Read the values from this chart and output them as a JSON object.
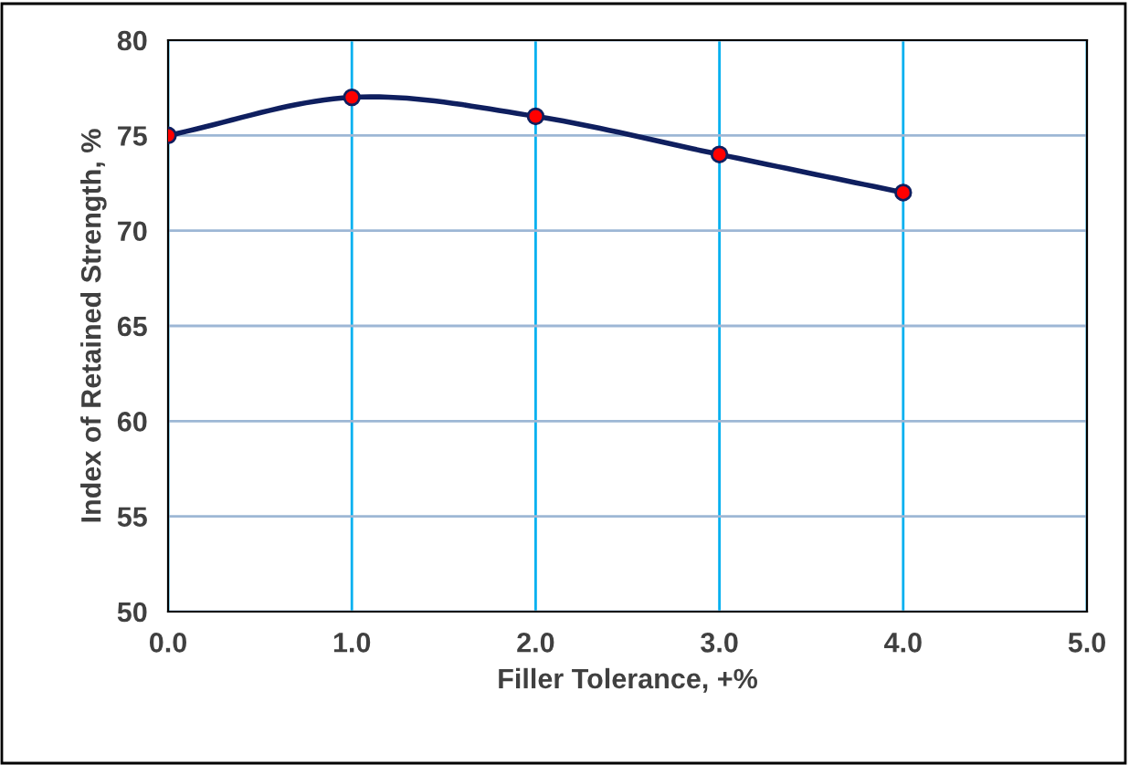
{
  "chart_data": {
    "type": "line",
    "xlabel": "Filler Tolerance, +%",
    "ylabel": "Index of Retained Strength, %",
    "x": [
      0,
      1,
      2,
      3,
      4
    ],
    "series": [
      {
        "color": "#0f1f5f",
        "values": [
          75,
          77,
          76,
          74,
          72
        ]
      }
    ],
    "xlim": [
      0,
      5
    ],
    "xticks": [
      {
        "value": 0,
        "label": "0.0"
      },
      {
        "value": 1,
        "label": "1.0"
      },
      {
        "value": 2,
        "label": "2.0"
      },
      {
        "value": 3,
        "label": "3.0"
      },
      {
        "value": 4,
        "label": "4.0"
      },
      {
        "value": 5,
        "label": "5.0"
      }
    ],
    "ylim": [
      50,
      80
    ],
    "yticks": [
      50,
      55,
      60,
      65,
      70,
      75,
      80
    ],
    "grid": true,
    "marker": "circle",
    "line_style": "solid"
  }
}
